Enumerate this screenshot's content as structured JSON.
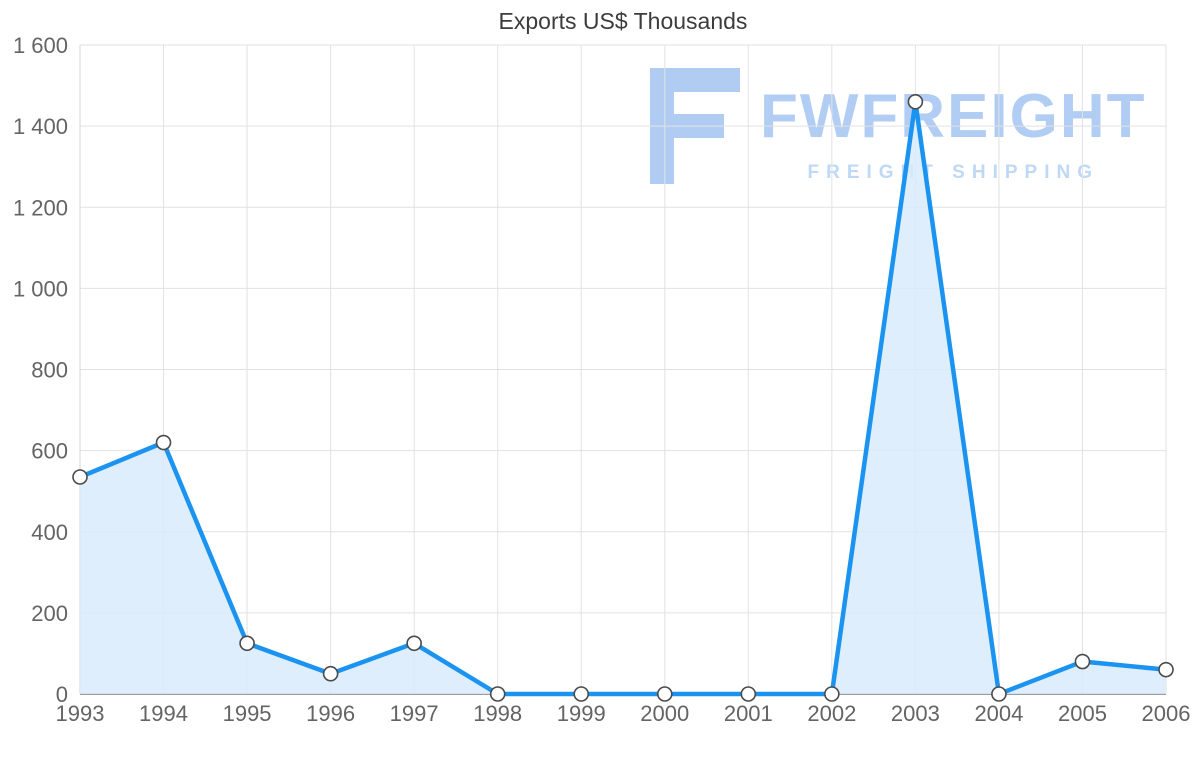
{
  "chart_data": {
    "type": "area",
    "title": "Exports US$ Thousands",
    "xlabel": "",
    "ylabel": "",
    "categories": [
      "1993",
      "1994",
      "1995",
      "1996",
      "1997",
      "1998",
      "1999",
      "2000",
      "2001",
      "2002",
      "2003",
      "2004",
      "2005",
      "2006"
    ],
    "values": [
      535,
      620,
      125,
      50,
      125,
      0,
      0,
      0,
      0,
      0,
      1460,
      0,
      80,
      60
    ],
    "ylim": [
      0,
      1600
    ],
    "ytick_interval": 200,
    "ytick_labels": [
      "0",
      "200",
      "400",
      "600",
      "800",
      "1 000",
      "1 200",
      "1 400",
      "1 600"
    ],
    "grid": "horizontal-and-vertical",
    "legend": "none",
    "colors": {
      "line": "#1b93f0",
      "area_fill": "#d8ebfc",
      "marker_fill": "#ffffff",
      "marker_stroke": "#4a4a4a",
      "grid": "#e2e2e2",
      "axis_left": "#d6d6d6",
      "axis_bottom": "#9e9e9e",
      "tick_label": "#646464",
      "title": "#3c3c3c"
    }
  },
  "watermark": {
    "brand": "FWFREIGHT",
    "tagline": "FREIGHT SHIPPING",
    "logo_color": "#a9c7f2"
  }
}
